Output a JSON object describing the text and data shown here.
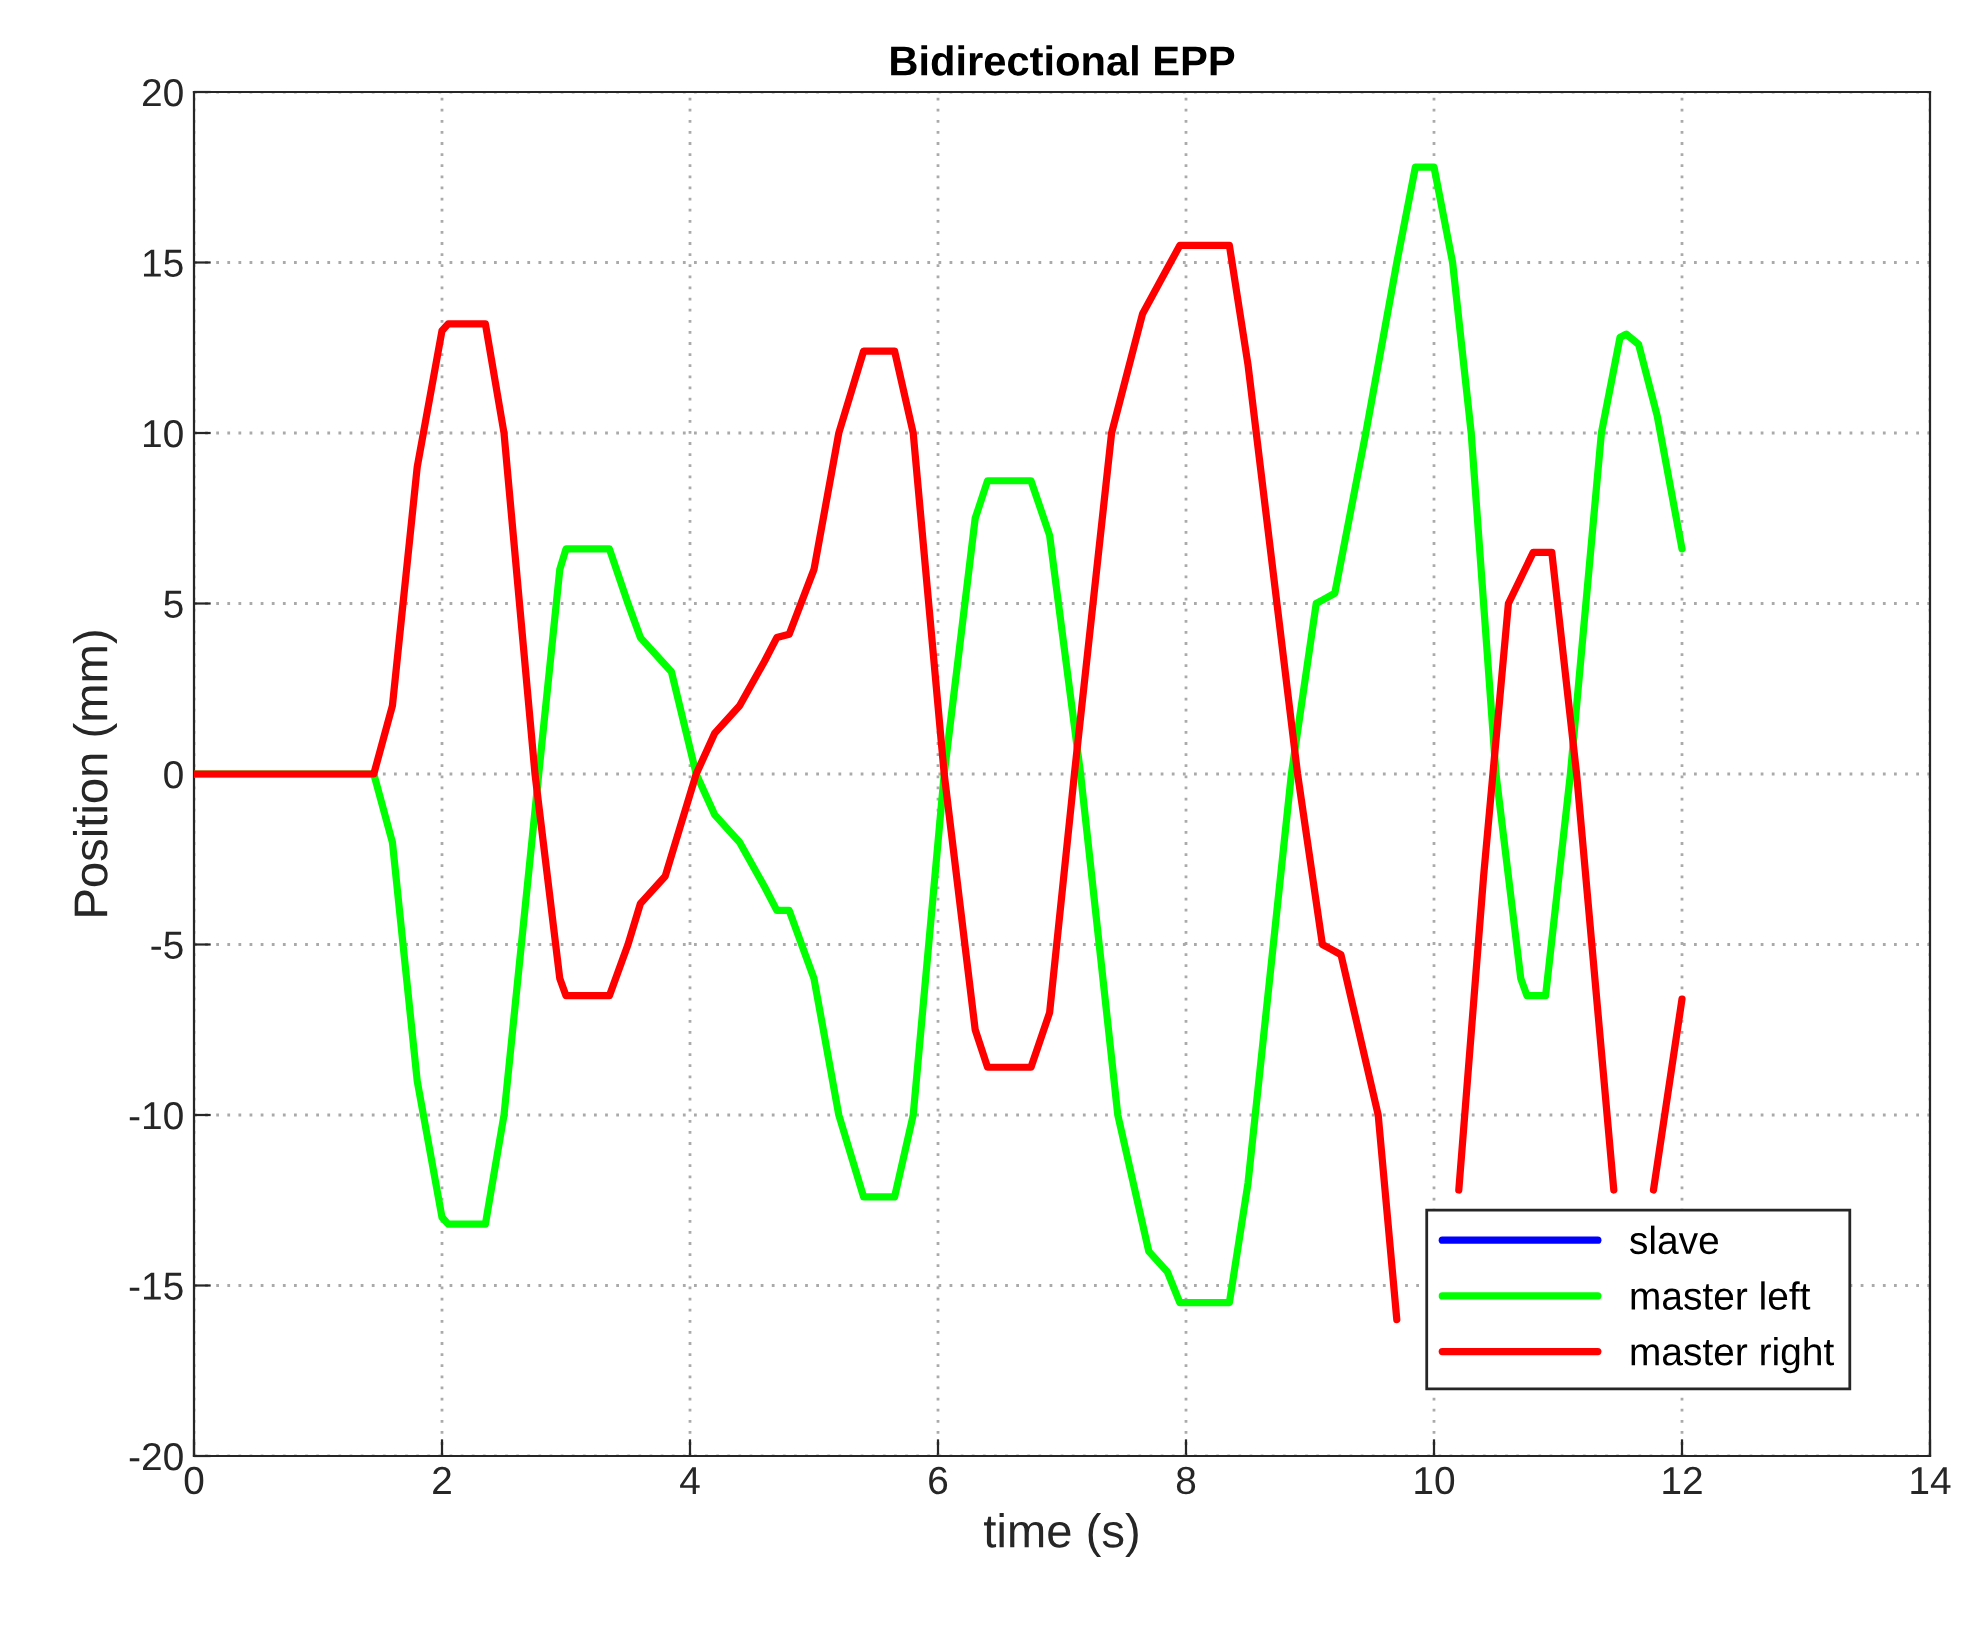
{
  "chart_data": {
    "type": "line",
    "title": "Bidirectional EPP",
    "xlabel": "time (s)",
    "ylabel": "Position (mm)",
    "xlim": [
      0,
      14
    ],
    "ylim": [
      -20,
      20
    ],
    "xticks": [
      0,
      2,
      4,
      6,
      8,
      10,
      12,
      14
    ],
    "yticks": [
      -20,
      -15,
      -10,
      -5,
      0,
      5,
      10,
      15,
      20
    ],
    "grid": true,
    "legend": "bottom right",
    "line_style": "solid",
    "marker": "none",
    "series": [
      {
        "name": "slave",
        "color": "#0000ff"
      },
      {
        "name": "master left",
        "color": "#00ff00",
        "x": [
          0,
          1.45,
          1.6,
          1.8,
          2.0,
          2.05,
          2.35,
          2.5,
          2.78,
          2.95,
          3.0,
          3.35,
          3.5,
          3.6,
          3.85,
          4.05,
          4.2,
          4.4,
          4.6,
          4.7,
          4.8,
          5.0,
          5.2,
          5.4,
          5.65,
          5.8,
          6.05,
          6.3,
          6.4,
          6.75,
          6.9,
          7.15,
          7.45,
          7.7,
          7.85,
          7.95,
          8.35,
          8.5,
          8.85,
          9.05,
          9.1,
          9.2,
          9.45,
          9.7,
          9.85,
          10.0,
          10.15,
          10.3,
          10.5,
          10.7,
          10.75,
          10.9,
          11.1,
          11.35,
          11.5,
          11.55,
          11.65,
          11.8,
          12.0
        ],
        "values": [
          0,
          0,
          -2,
          -9,
          -13,
          -13.2,
          -13.2,
          -10,
          0,
          6,
          6.6,
          6.6,
          5,
          4,
          3,
          0,
          -1.2,
          -2,
          -3.3,
          -4,
          -4,
          -6,
          -10,
          -12.4,
          -12.4,
          -10,
          0,
          7.5,
          8.6,
          8.6,
          7,
          0,
          -10,
          -14,
          -14.6,
          -15.5,
          -15.5,
          -12,
          0,
          5,
          5.1,
          5.3,
          10,
          15,
          17.8,
          17.8,
          15,
          10,
          0,
          -6,
          -6.5,
          -6.5,
          0,
          10,
          12.8,
          12.9,
          12.6,
          10.5,
          6.6
        ]
      },
      {
        "name": "master right",
        "color": "#ff0000",
        "x": [
          0,
          1.45,
          1.6,
          1.8,
          2.0,
          2.05,
          2.35,
          2.5,
          2.75,
          2.95,
          3.0,
          3.35,
          3.5,
          3.6,
          3.8,
          4.05,
          4.2,
          4.4,
          4.6,
          4.7,
          4.8,
          5.0,
          5.2,
          5.4,
          5.65,
          5.8,
          6.05,
          6.3,
          6.4,
          6.75,
          6.9,
          7.1,
          7.4,
          7.65,
          7.8,
          7.95,
          8.35,
          8.5,
          8.9,
          9.1,
          9.15,
          9.25,
          9.55,
          9.7,
          10.0,
          10.2,
          10.4,
          10.6,
          10.8,
          10.85,
          10.95,
          11.15,
          11.45,
          11.6,
          11.77,
          12.0
        ],
        "values": [
          0,
          0,
          2,
          9,
          13,
          13.2,
          13.2,
          10,
          0,
          -6,
          -6.5,
          -6.5,
          -5,
          -3.8,
          -3,
          0,
          1.2,
          2,
          3.3,
          4,
          4.1,
          6,
          10,
          12.4,
          12.4,
          10,
          0,
          -7.5,
          -8.6,
          -8.6,
          -7,
          0,
          10,
          13.5,
          14.5,
          15.5,
          15.5,
          12,
          0,
          -5,
          -5.1,
          -5.3,
          -10,
          -16,
          null,
          -12.2,
          -3,
          5,
          6.5,
          6.5,
          6.5,
          0,
          -12.2,
          null,
          -12.2,
          -6.6
        ]
      }
    ]
  }
}
